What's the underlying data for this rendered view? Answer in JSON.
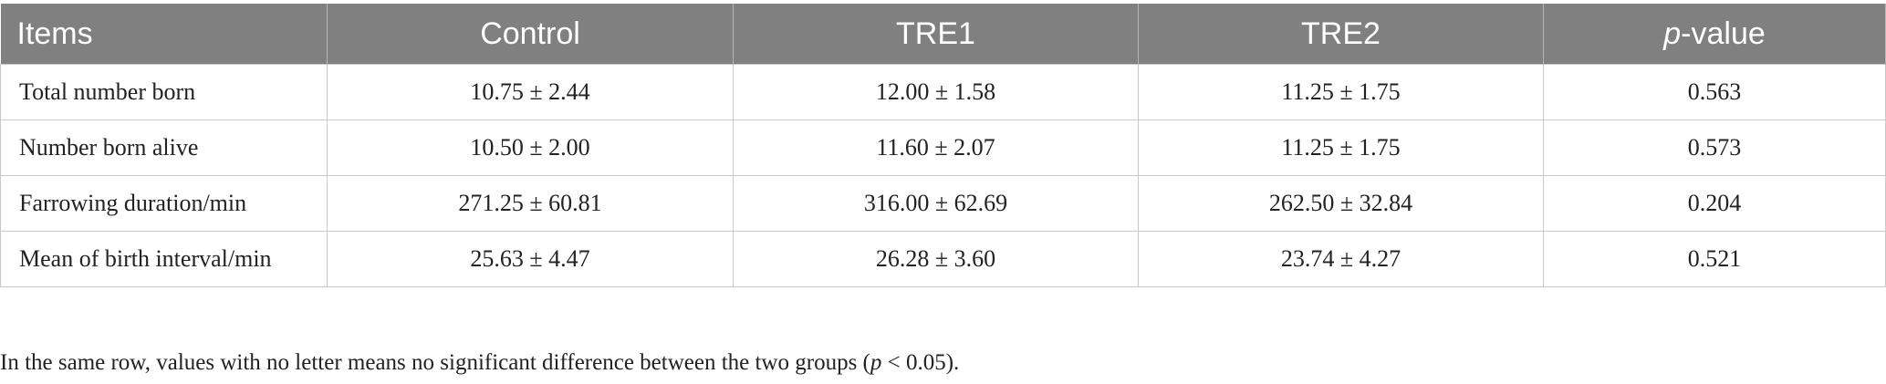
{
  "table": {
    "header": [
      "Items",
      "Control",
      "TRE1",
      "TRE2",
      [
        "p",
        "-value"
      ]
    ],
    "rows": [
      [
        "Total number born",
        "10.75 ± 2.44",
        "12.00 ± 1.58",
        "11.25 ± 1.75",
        "0.563"
      ],
      [
        "Number born alive",
        "10.50 ± 2.00",
        "11.60 ± 2.07",
        "11.25 ± 1.75",
        "0.573"
      ],
      [
        "Farrowing duration/min",
        "271.25 ± 60.81",
        "316.00 ± 62.69",
        "262.50 ± 32.84",
        "0.204"
      ],
      [
        "Mean of birth interval/min",
        "25.63 ± 4.47",
        "26.28 ± 3.60",
        "23.74 ± 4.27",
        "0.521"
      ]
    ]
  },
  "footnote": [
    "In the same row, values with no letter means no significant difference between the two groups (",
    "p",
    " < 0.05)."
  ]
}
